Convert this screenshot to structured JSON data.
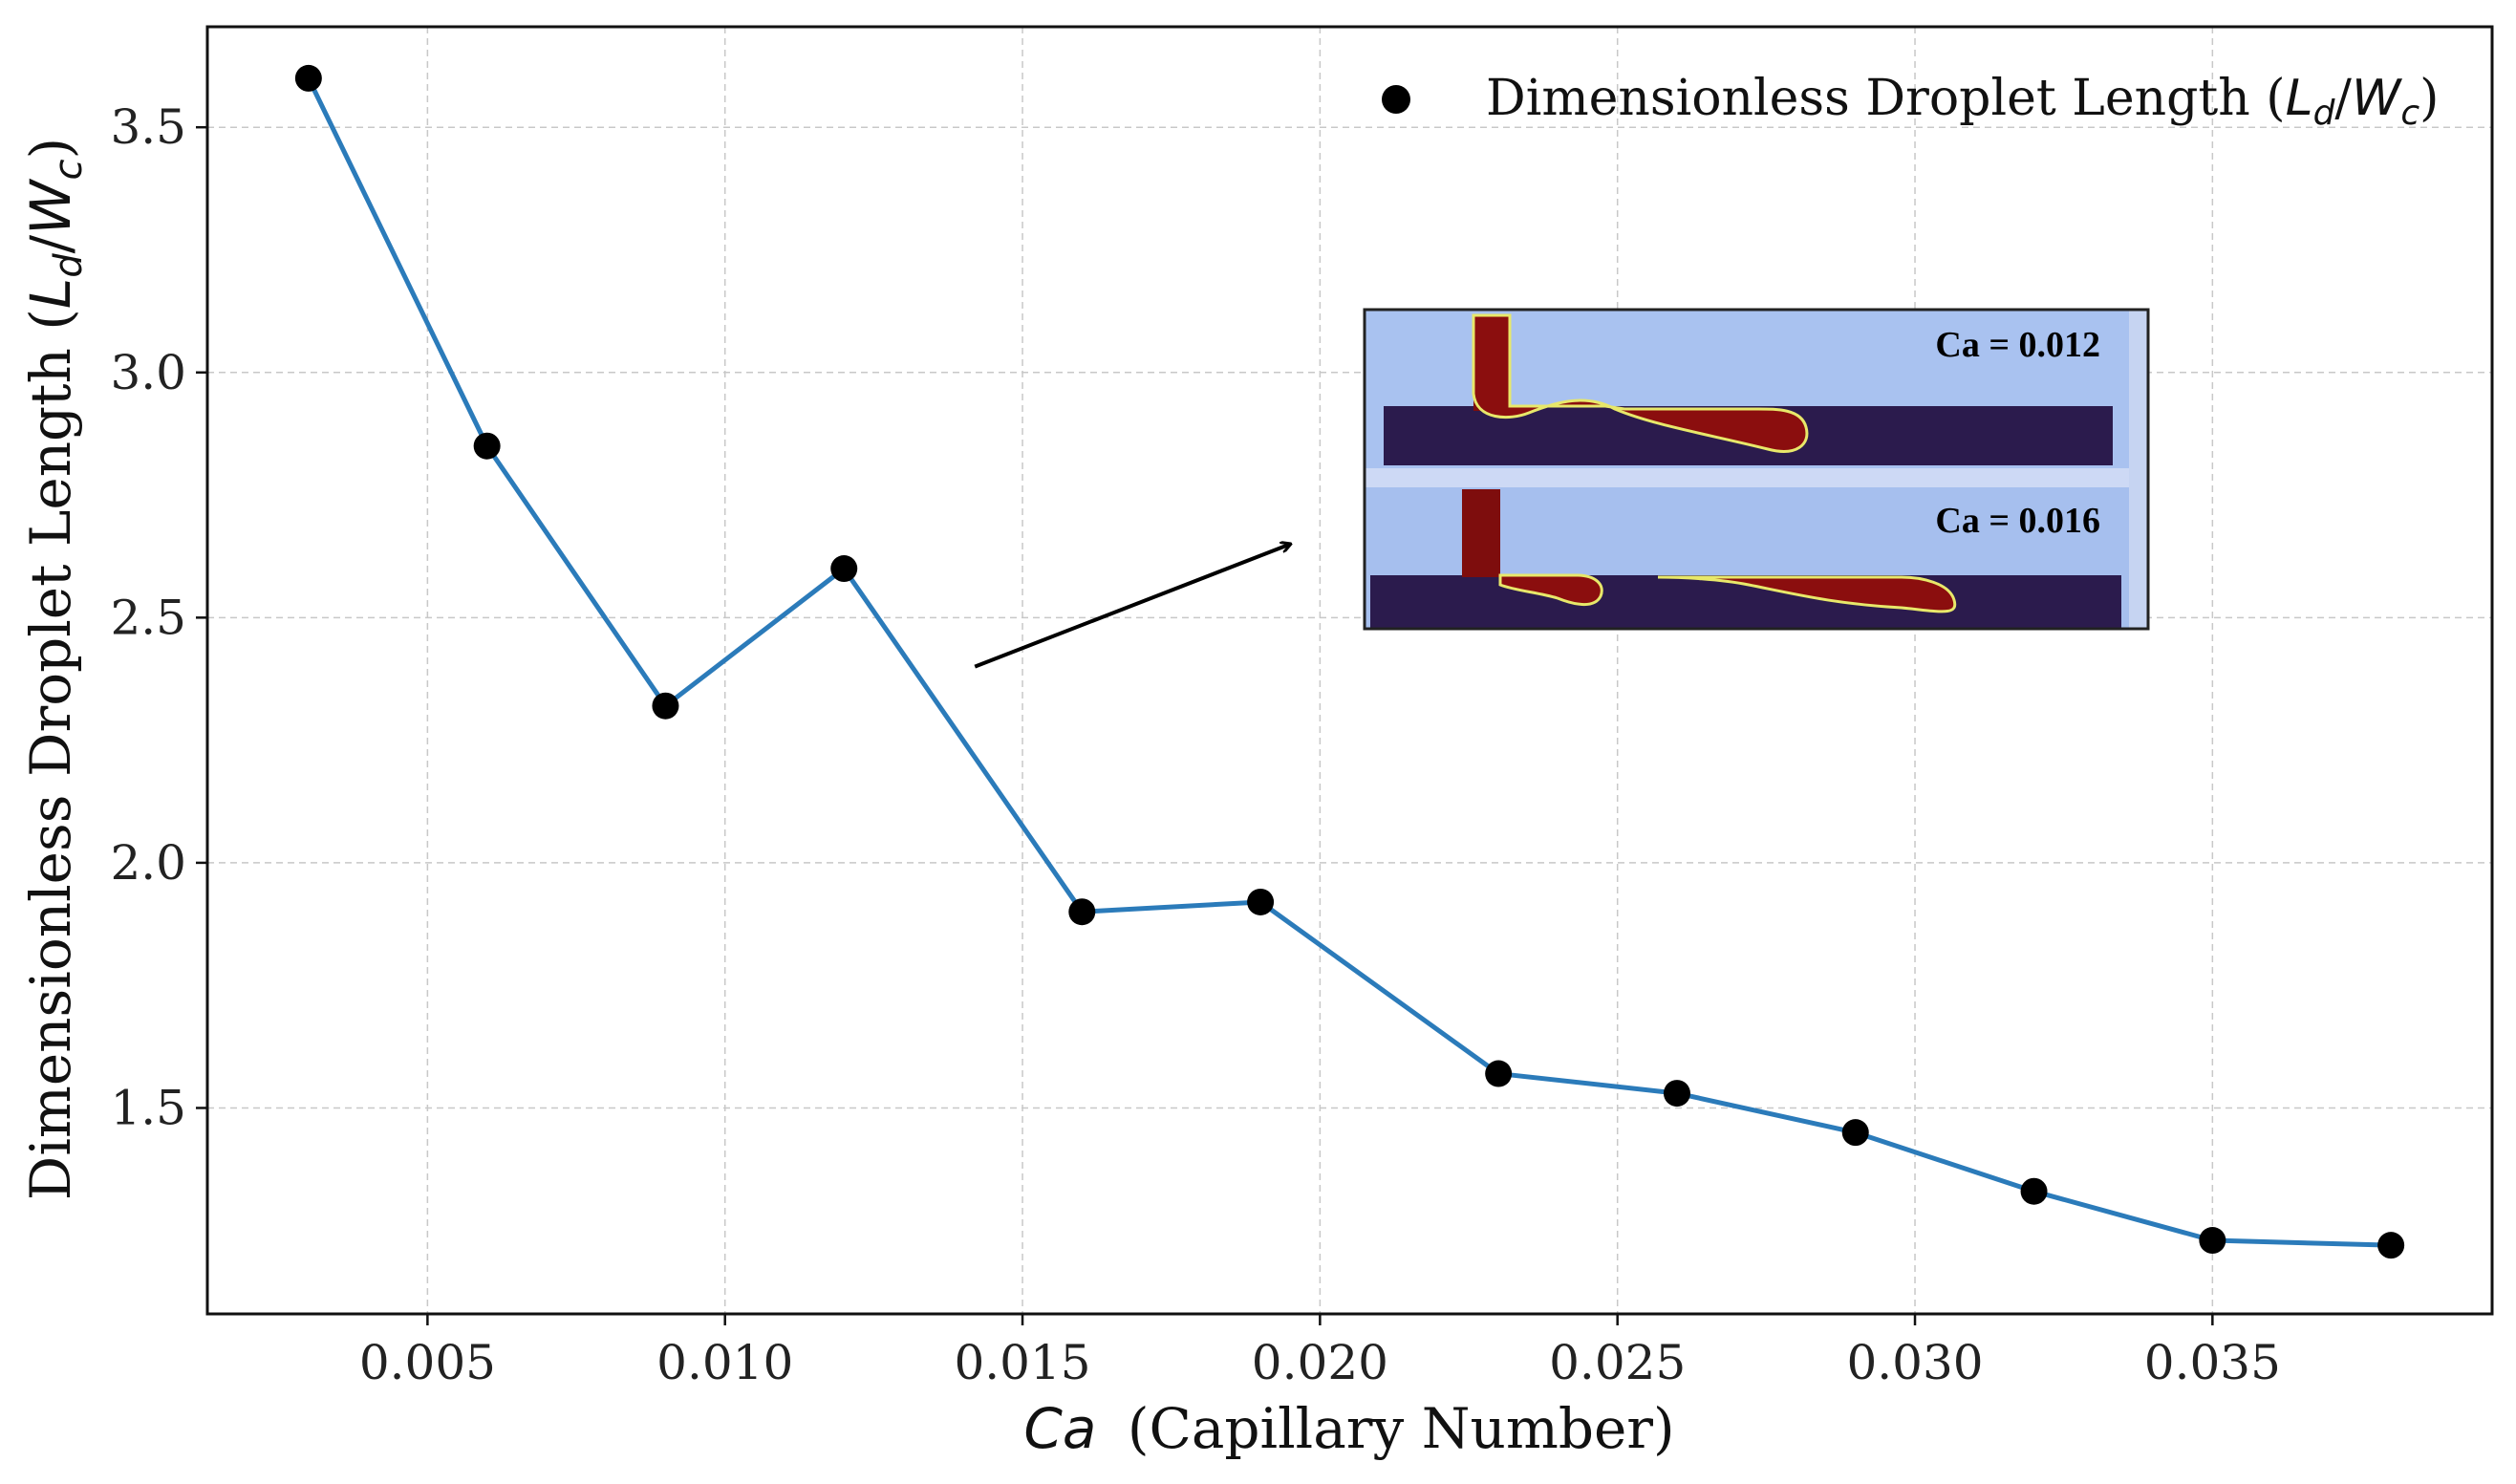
{
  "chart_data": {
    "type": "line",
    "title": "",
    "xlabel_italic": "Ca",
    "xlabel_rest": "(Capillary Number)",
    "ylabel_main": "Dimensionless Droplet Length (",
    "ylabel_L": "L",
    "ylabel_L_sub": "d",
    "ylabel_slash": "/",
    "ylabel_W": "W",
    "ylabel_W_sub": "c",
    "ylabel_close": ")",
    "xlim": [
      0.0013,
      0.0397
    ],
    "ylim": [
      1.08,
      3.705
    ],
    "grid": true,
    "x_ticks": [
      0.005,
      0.01,
      0.015,
      0.02,
      0.025,
      0.03,
      0.035
    ],
    "x_tick_labels": [
      "0.005",
      "0.010",
      "0.015",
      "0.020",
      "0.025",
      "0.030",
      "0.035"
    ],
    "y_ticks": [
      1.5,
      2.0,
      2.5,
      3.0,
      3.5
    ],
    "y_tick_labels": [
      "1.5",
      "2.0",
      "2.5",
      "3.0",
      "3.5"
    ],
    "series": [
      {
        "name": "Dimensionless Droplet Length",
        "line_color": "#2b7bba",
        "marker_color": "#000000",
        "x": [
          0.003,
          0.006,
          0.009,
          0.012,
          0.016,
          0.019,
          0.023,
          0.026,
          0.029,
          0.032,
          0.035,
          0.038
        ],
        "y": [
          3.6,
          2.85,
          2.32,
          2.6,
          1.9,
          1.92,
          1.57,
          1.53,
          1.45,
          1.33,
          1.23,
          1.22
        ]
      }
    ],
    "legend": {
      "placement": "top-right",
      "label_main": "Dimensionless Droplet Length (",
      "label_L": "L",
      "label_L_sub": "d",
      "label_slash": "/",
      "label_W": "W",
      "label_W_sub": "c",
      "label_close": ")"
    },
    "annotation": {
      "type": "arrow",
      "from": [
        0.0142,
        2.4
      ],
      "to": [
        0.0195,
        2.65
      ]
    },
    "inset": {
      "panels": [
        {
          "label": "Ca = 0.012"
        },
        {
          "label": "Ca = 0.016"
        }
      ]
    }
  }
}
